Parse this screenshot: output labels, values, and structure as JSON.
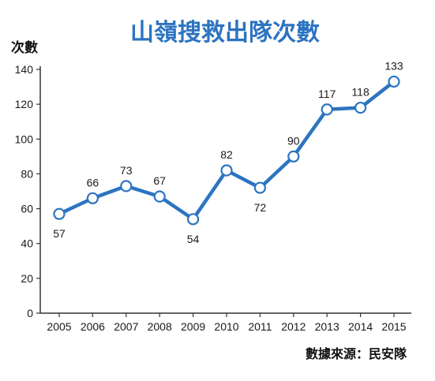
{
  "chart_data": {
    "type": "line",
    "title": "山嶺搜救出隊次數",
    "ylabel": "次數",
    "xlabel": "",
    "source": "數據來源：民安隊",
    "x": [
      "2005",
      "2006",
      "2007",
      "2008",
      "2009",
      "2010",
      "2011",
      "2012",
      "2013",
      "2014",
      "2015"
    ],
    "series": [
      {
        "values": [
          57,
          66,
          73,
          67,
          54,
          82,
          72,
          90,
          117,
          118,
          133
        ]
      }
    ],
    "yticks": [
      0,
      20,
      40,
      60,
      80,
      100,
      120,
      140
    ],
    "ylim": [
      0,
      140
    ],
    "grid": false,
    "legend": "none",
    "colors": {
      "line": "#2c74c0",
      "marker_fill": "#ffffff",
      "title": "#2c74c0",
      "axis": "#333333"
    }
  }
}
